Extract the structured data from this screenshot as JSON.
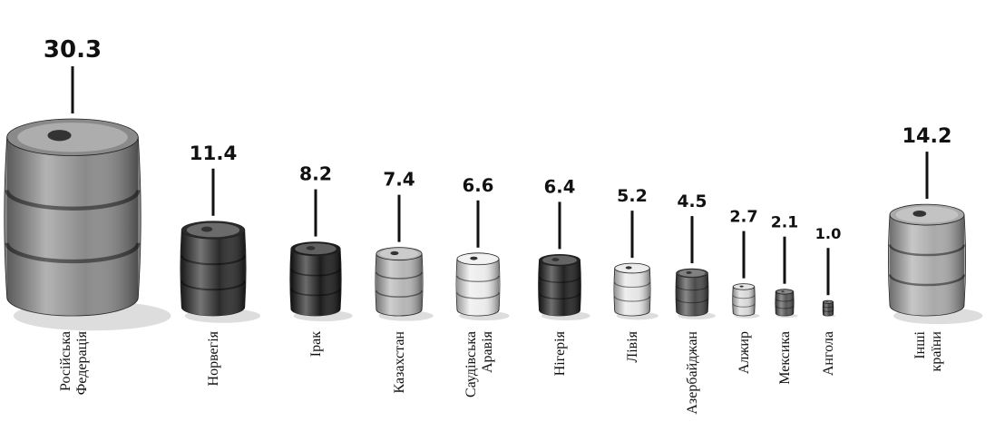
{
  "chart_data": {
    "type": "barrel",
    "categories": [
      [
        "Російська",
        "Федерація"
      ],
      [
        "Норвегія"
      ],
      [
        "Ірак"
      ],
      [
        "Казахстан"
      ],
      [
        "Саудівська",
        "Аравія"
      ],
      [
        "Нігерія"
      ],
      [
        "Лівія"
      ],
      [
        "Азербайджан"
      ],
      [
        "Алжир"
      ],
      [
        "Мексика"
      ],
      [
        "Ангола"
      ],
      [
        "Інші",
        "країни"
      ]
    ],
    "values": [
      30.3,
      11.4,
      8.2,
      7.4,
      6.6,
      6.4,
      5.2,
      4.5,
      2.7,
      2.1,
      1.0,
      14.2
    ],
    "value_labels": [
      "30.3",
      "11.4",
      "8.2",
      "7.4",
      "6.6",
      "6.4",
      "5.2",
      "4.5",
      "2.7",
      "2.1",
      "1.0",
      "14.2"
    ],
    "colors": [
      "#8a8a8a",
      "#2b2b2b",
      "#1c1c1c",
      "#b5b5b5",
      "#ececec",
      "#222222",
      "#e6e6e6",
      "#4a4a4a",
      "#d8d8d8",
      "#555555",
      "#444444",
      "#a9a9a9"
    ]
  }
}
